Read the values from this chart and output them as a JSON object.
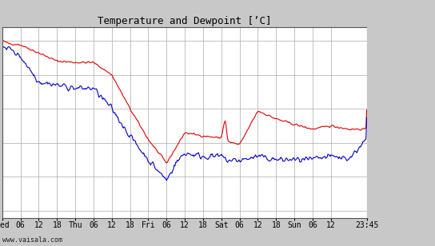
{
  "title": "Temperature and Dewpoint [’C]",
  "ylim": [
    -21,
    7
  ],
  "yticks": [
    5,
    0,
    -5,
    -10,
    -15,
    -20
  ],
  "tick_positions": [
    0,
    6,
    12,
    18,
    24,
    30,
    36,
    42,
    48,
    54,
    60,
    66,
    72,
    78,
    84,
    90,
    96,
    102,
    108,
    119.75
  ],
  "tick_labels": [
    "Wed",
    "06",
    "12",
    "18",
    "Thu",
    "06",
    "12",
    "18",
    "Fri",
    "06",
    "12",
    "18",
    "Sat",
    "06",
    "12",
    "18",
    "Sun",
    "06",
    "12",
    "23:45"
  ],
  "xlim": [
    0,
    119.75
  ],
  "background_color": "#c8c8c8",
  "plot_bg_color": "#ffffff",
  "right_panel_color": "#c8c8c8",
  "grid_color": "#aaaaaa",
  "temp_color": "#dd0000",
  "dewpoint_color": "#0000cc",
  "line_width": 0.8,
  "watermark": "www.vaisala.com",
  "title_font": "monospace",
  "title_fontsize": 9
}
